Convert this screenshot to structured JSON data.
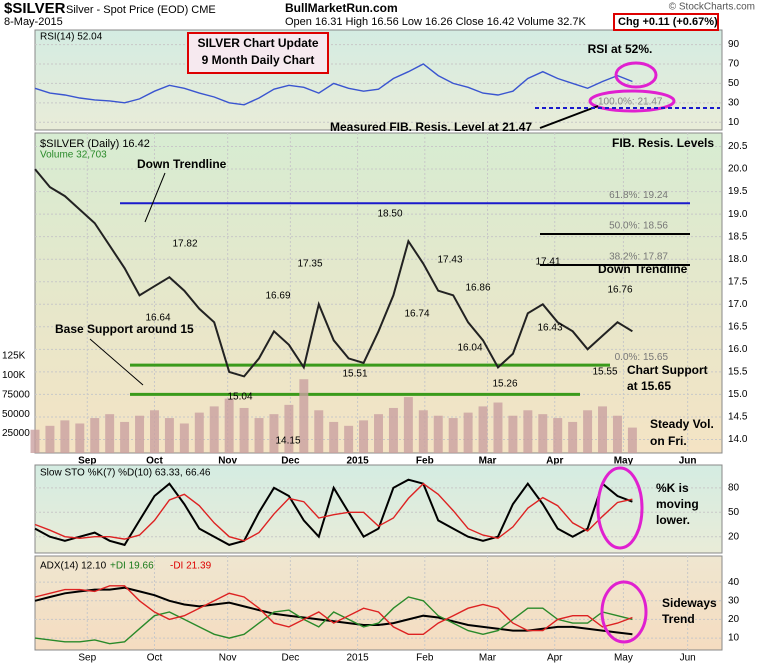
{
  "header": {
    "symbol": "$SILVER",
    "name": "Silver - Spot Price (EOD)  CME",
    "date": "8-May-2015",
    "site": "BullMarketRun.com",
    "ohlc": "Open 16.31  High 16.56  Low 16.26  Close 16.42  Volume 32.7K",
    "change": "Chg +0.11 (+0.67%)",
    "source": "© StockCharts.com"
  },
  "chart_data": [
    {
      "type": "line",
      "xlim": [
        0,
        46
      ],
      "ylim": [
        2,
        105
      ],
      "yticks": [
        10,
        30,
        50,
        70,
        90
      ],
      "series": [
        {
          "name": "RSI(14) 52.04",
          "color": "#3a55d0",
          "values": [
            45,
            40,
            38,
            35,
            33,
            32,
            30,
            34,
            42,
            48,
            45,
            40,
            36,
            30,
            28,
            35,
            44,
            48,
            46,
            40,
            50,
            45,
            42,
            44,
            55,
            62,
            70,
            58,
            50,
            46,
            40,
            38,
            42,
            55,
            62,
            55,
            50,
            45,
            52,
            58,
            52
          ]
        }
      ],
      "annotations": [
        "SILVER Chart Update",
        "9 Month Daily Chart",
        "RSI at 52%.",
        "Measured FIB. Resis. Level at 21.47",
        "100.0%: 21.47"
      ]
    },
    {
      "type": "line",
      "xlim": [
        0,
        46
      ],
      "ylim": [
        13.7,
        20.8
      ],
      "y2lim": [
        0,
        412000
      ],
      "xticks": [
        {
          "value": 3.5,
          "label": "Sep"
        },
        {
          "value": 8,
          "label": "Oct"
        },
        {
          "value": 12.9,
          "label": "Nov"
        },
        {
          "value": 17.1,
          "label": "Dec"
        },
        {
          "value": 21.6,
          "label": "2015"
        },
        {
          "value": 26.1,
          "label": "Feb"
        },
        {
          "value": 30.3,
          "label": "Mar"
        },
        {
          "value": 34.8,
          "label": "Apr"
        },
        {
          "value": 39.4,
          "label": "May"
        },
        {
          "value": 43.7,
          "label": "Jun"
        }
      ],
      "yticks": [
        {
          "value": 14,
          "label": "14.0"
        },
        14.5,
        {
          "value": 15,
          "label": "15.0"
        },
        15.5,
        {
          "value": 16,
          "label": "16.0"
        },
        16.5,
        {
          "value": 17,
          "label": "17.0"
        },
        17.5,
        {
          "value": 18,
          "label": "18.0"
        },
        18.5,
        {
          "value": 19,
          "label": "19.0"
        },
        19.5,
        {
          "value": 20,
          "label": "20.0"
        },
        20.5
      ],
      "y2ticks": [
        25000,
        50000,
        75000,
        {
          "value": 100000,
          "label": "100K"
        },
        {
          "value": 125000,
          "label": "125K"
        }
      ],
      "legend": "$SILVER (Daily) 16.42",
      "volume_legend": "Volume 32,703",
      "series": [
        {
          "name": "$SILVER",
          "color": "#222222",
          "values": [
            20.0,
            19.6,
            19.4,
            19.1,
            18.8,
            18.3,
            17.8,
            17.2,
            17.4,
            17.6,
            17.3,
            16.9,
            16.6,
            15.5,
            15.4,
            15.8,
            16.4,
            16.1,
            15.6,
            17.0,
            16.2,
            15.8,
            15.7,
            16.4,
            17.2,
            18.4,
            17.9,
            17.3,
            17.2,
            16.6,
            16.2,
            15.6,
            15.9,
            16.8,
            17.0,
            16.6,
            16.4,
            16.0,
            16.3,
            16.6,
            16.4
          ]
        },
        {
          "name": "Volume",
          "color": "#c9a0a0",
          "axis": "y2",
          "values": [
            30000,
            35000,
            42000,
            38000,
            45000,
            50000,
            40000,
            48000,
            55000,
            45000,
            38000,
            52000,
            60000,
            70000,
            58000,
            45000,
            50000,
            62000,
            95000,
            55000,
            40000,
            35000,
            42000,
            50000,
            58000,
            72000,
            55000,
            48000,
            45000,
            52000,
            60000,
            65000,
            48000,
            55000,
            50000,
            45000,
            40000,
            55000,
            60000,
            48000,
            32703
          ]
        }
      ],
      "levels": [
        {
          "label": "61.8%: 19.24",
          "value": 19.24
        },
        {
          "label": "50.0%: 18.56",
          "value": 18.56
        },
        {
          "label": "38.2%: 17.87",
          "value": 17.87
        },
        {
          "label": "0.0%: 15.65",
          "value": 15.65
        }
      ],
      "supports": [
        15.65,
        15.0
      ],
      "annotations": [
        "Down Trendline",
        "Down Trendline",
        "Base Support around 15",
        "Chart Support",
        "at 15.65",
        "Steady Vol.",
        "on Fri.",
        "FIB. Resis. Levels"
      ],
      "point_labels": [
        "18.50",
        "17.82",
        "17.35",
        "16.69",
        "16.64",
        "17.43",
        "16.86",
        "16.74",
        "17.41",
        "16.76",
        "16.43",
        "16.04",
        "15.51",
        "15.26",
        "15.55",
        "15.04",
        "14.15"
      ]
    },
    {
      "type": "line",
      "xlim": [
        0,
        46
      ],
      "ylim": [
        0,
        108
      ],
      "yticks": [
        20,
        50,
        80
      ],
      "legend": "Slow STO %K(7) %D(10) 63.33, 66.46",
      "series": [
        {
          "name": "%K(7)",
          "color": "#000000",
          "values": [
            30,
            20,
            15,
            20,
            25,
            15,
            10,
            40,
            70,
            85,
            60,
            30,
            20,
            10,
            15,
            50,
            80,
            70,
            40,
            20,
            80,
            50,
            20,
            30,
            80,
            90,
            85,
            40,
            30,
            20,
            15,
            20,
            60,
            85,
            60,
            30,
            20,
            30,
            85,
            70,
            63
          ]
        },
        {
          "name": "%D(10)",
          "color": "#dd2222",
          "values": [
            35,
            28,
            20,
            18,
            20,
            20,
            17,
            22,
            40,
            65,
            72,
            58,
            37,
            20,
            15,
            25,
            48,
            67,
            63,
            43,
            47,
            50,
            50,
            33,
            43,
            67,
            85,
            72,
            52,
            30,
            22,
            18,
            32,
            55,
            68,
            58,
            37,
            27,
            45,
            62,
            66
          ]
        }
      ],
      "annotations": [
        "%K is",
        "moving",
        "lower."
      ]
    },
    {
      "type": "line",
      "xlim": [
        0,
        46
      ],
      "ylim": [
        3.6,
        54
      ],
      "yticks": [
        10,
        20,
        30,
        40
      ],
      "xticks": [
        {
          "value": 3.5,
          "label": "Sep"
        },
        {
          "value": 8,
          "label": "Oct"
        },
        {
          "value": 12.9,
          "label": "Nov"
        },
        {
          "value": 17.1,
          "label": "Dec"
        },
        {
          "value": 21.6,
          "label": "2015"
        },
        {
          "value": 26.1,
          "label": "Feb"
        },
        {
          "value": 30.3,
          "label": "Mar"
        },
        {
          "value": 34.8,
          "label": "Apr"
        },
        {
          "value": 39.4,
          "label": "May"
        },
        {
          "value": 43.7,
          "label": "Jun"
        }
      ],
      "series": [
        {
          "name": "ADX(14) 12.10",
          "color": "#000000",
          "values": [
            30,
            32,
            34,
            35,
            36,
            36,
            37,
            35,
            33,
            30,
            28,
            27,
            28,
            29,
            27,
            25,
            23,
            22,
            21,
            20,
            19,
            18,
            17,
            17,
            18,
            20,
            22,
            21,
            19,
            17,
            16,
            15,
            14,
            14,
            15,
            16,
            16,
            15,
            14,
            13,
            12
          ]
        },
        {
          "name": "+DI 19.66",
          "color": "#2a8a2a",
          "values": [
            10,
            9,
            8,
            8,
            9,
            7,
            8,
            15,
            22,
            24,
            20,
            16,
            12,
            10,
            12,
            18,
            24,
            25,
            20,
            16,
            24,
            20,
            16,
            18,
            26,
            32,
            30,
            22,
            18,
            14,
            12,
            14,
            20,
            26,
            26,
            20,
            18,
            18,
            24,
            22,
            20
          ]
        },
        {
          "name": "-DI 21.39",
          "color": "#dd2222",
          "values": [
            32,
            34,
            36,
            36,
            35,
            38,
            38,
            30,
            24,
            20,
            22,
            26,
            30,
            34,
            32,
            26,
            18,
            16,
            20,
            24,
            18,
            22,
            26,
            24,
            16,
            12,
            12,
            18,
            22,
            26,
            28,
            26,
            18,
            14,
            14,
            20,
            22,
            22,
            16,
            18,
            21
          ]
        }
      ],
      "annotations": [
        "Sideways",
        "Trend"
      ]
    }
  ]
}
